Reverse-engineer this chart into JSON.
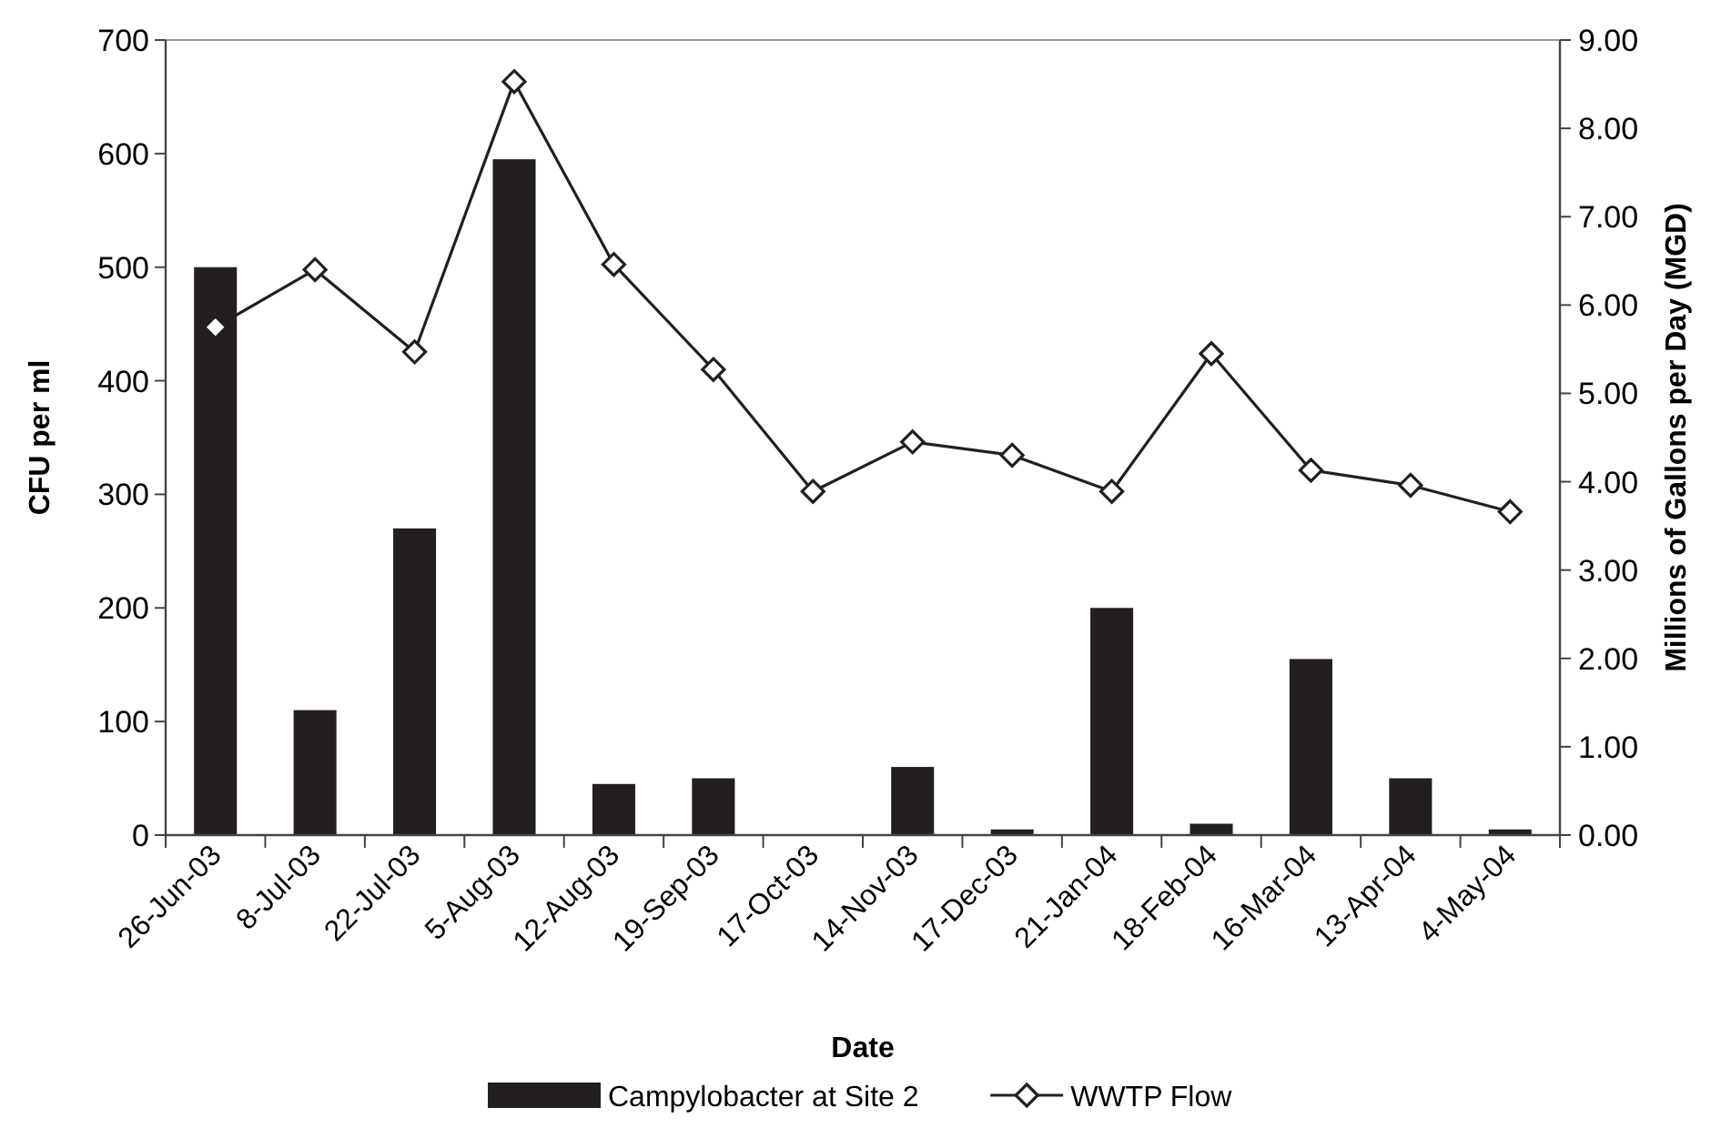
{
  "chart_data": {
    "type": "bar",
    "xlabel": "Date",
    "ylabel": "CFU per ml",
    "y2label": "Millions of Gallons per Day (MGD)",
    "categories": [
      "26-Jun-03",
      "8-Jul-03",
      "22-Jul-03",
      "5-Aug-03",
      "12-Aug-03",
      "19-Sep-03",
      "17-Oct-03",
      "14-Nov-03",
      "17-Dec-03",
      "21-Jan-04",
      "18-Feb-04",
      "16-Mar-04",
      "13-Apr-04",
      "4-May-04"
    ],
    "series": [
      {
        "name": "Campylobacter at Site 2",
        "color": "#231f20",
        "values": [
          500,
          110,
          270,
          595,
          45,
          50,
          0,
          60,
          5,
          200,
          10,
          155,
          50,
          5
        ]
      },
      {
        "name": "WWTP Flow",
        "type": "line",
        "axis": "y2",
        "color": "#231f20",
        "marker": "diamond",
        "values": [
          5.75,
          6.4,
          5.47,
          8.53,
          6.46,
          5.27,
          3.89,
          4.45,
          4.3,
          3.89,
          5.45,
          4.13,
          3.96,
          3.66
        ]
      }
    ],
    "ylim": [
      0,
      700
    ],
    "yticks": [
      0,
      100,
      200,
      300,
      400,
      500,
      600,
      700
    ],
    "y2lim": [
      0,
      9
    ],
    "y2ticks": [
      {
        "value": 0,
        "label": "0.00"
      },
      {
        "value": 1,
        "label": "1.00"
      },
      {
        "value": 2,
        "label": "2.00"
      },
      {
        "value": 3,
        "label": "3.00"
      },
      {
        "value": 4,
        "label": "4.00"
      },
      {
        "value": 5,
        "label": "5.00"
      },
      {
        "value": 6,
        "label": "6.00"
      },
      {
        "value": 7,
        "label": "7.00"
      },
      {
        "value": 8,
        "label": "8.00"
      },
      {
        "value": 9,
        "label": "9.00"
      }
    ],
    "legend": "bottom"
  }
}
